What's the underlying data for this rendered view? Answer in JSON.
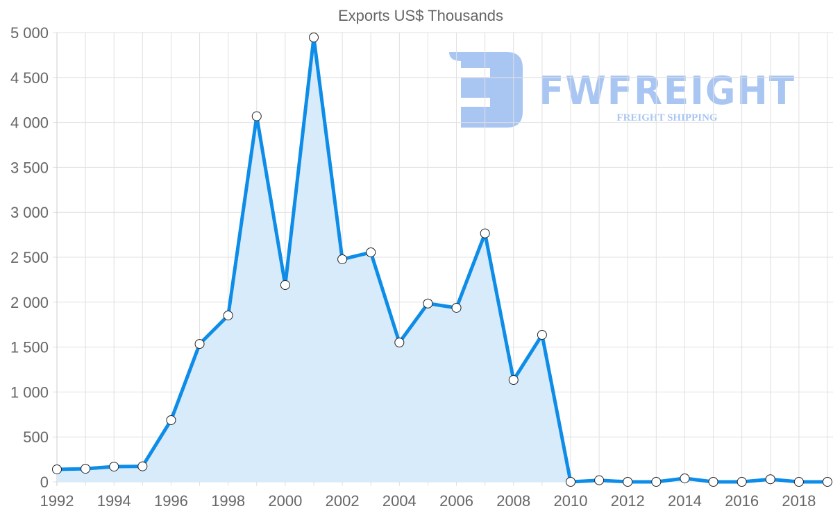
{
  "chart_data": {
    "type": "area",
    "title": "Exports US$ Thousands",
    "xlabel": "",
    "ylabel": "",
    "x": [
      1992,
      1993,
      1994,
      1995,
      1996,
      1997,
      1998,
      1999,
      2000,
      2001,
      2002,
      2003,
      2004,
      2005,
      2006,
      2007,
      2008,
      2009,
      2010,
      2011,
      2012,
      2013,
      2014,
      2015,
      2016,
      2017,
      2018,
      2019
    ],
    "series": [
      {
        "name": "Exports US$ Thousands",
        "values": [
          139,
          146,
          170,
          173,
          687,
          1535,
          1852,
          4069,
          2191,
          4946,
          2477,
          2554,
          1551,
          1985,
          1937,
          2765,
          1134,
          1636,
          0,
          18,
          0,
          0,
          39,
          0,
          0,
          29,
          0,
          0
        ]
      }
    ],
    "ylim": [
      0,
      5000
    ],
    "y_ticks": [
      "0",
      "500",
      "1 000",
      "1 500",
      "2 000",
      "2 500",
      "3 000",
      "3 500",
      "4 000",
      "4 500",
      "5 000"
    ],
    "x_ticks": [
      "1992",
      "1994",
      "1996",
      "1998",
      "2000",
      "2002",
      "2004",
      "2006",
      "2008",
      "2010",
      "2012",
      "2014",
      "2016",
      "2018"
    ],
    "grid": true,
    "legend": "none",
    "colors": {
      "line": "#0d8de8",
      "fill": "#d8ebfb",
      "marker_fill": "#ffffff",
      "marker_stroke": "#222222",
      "grid": "#e0e0e0"
    }
  },
  "watermark": {
    "brand": "FWFREIGHT",
    "tagline": "FREIGHT SHIPPING"
  }
}
